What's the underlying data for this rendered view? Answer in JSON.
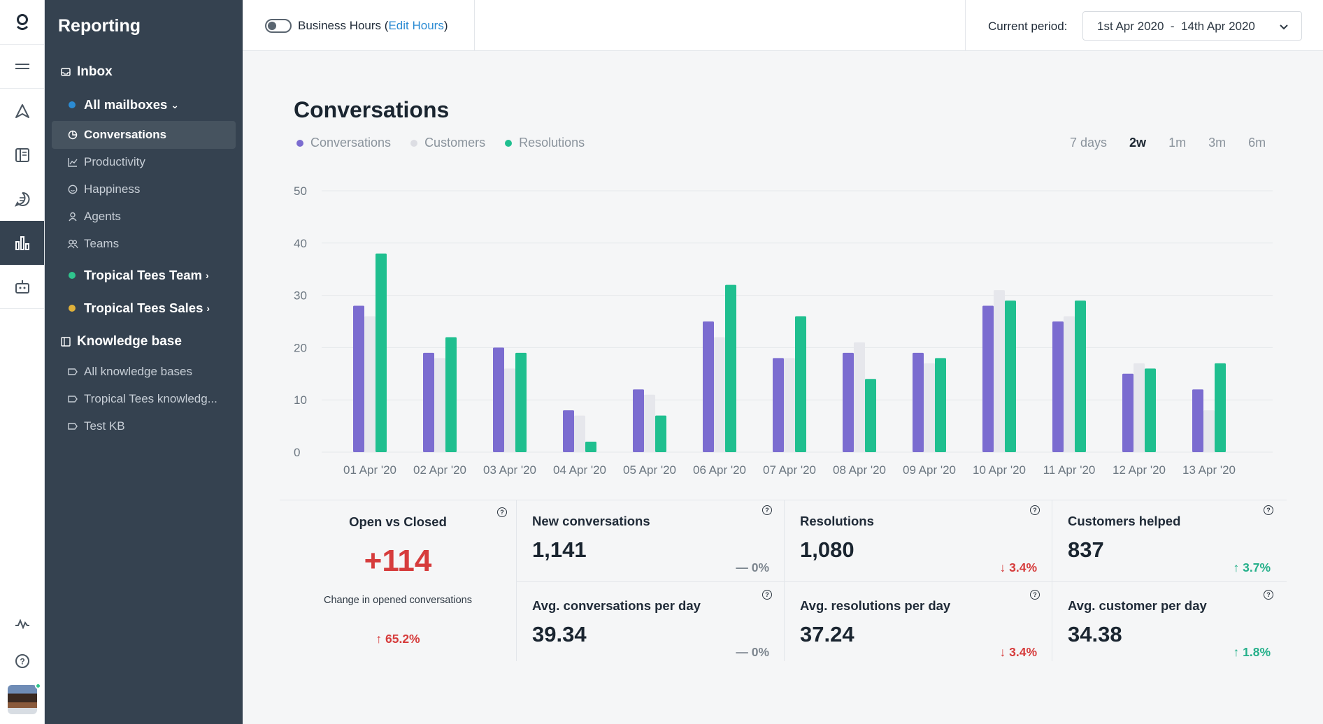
{
  "sidebar": {
    "title": "Reporting",
    "inbox_label": "Inbox",
    "mailboxes_label": "All mailboxes",
    "inbox_items": [
      "Conversations",
      "Productivity",
      "Happiness",
      "Agents",
      "Teams"
    ],
    "team1": "Tropical Tees Team",
    "team2": "Tropical Tees Sales",
    "kb_label": "Knowledge base",
    "kb_items": [
      "All knowledge bases",
      "Tropical Tees knowledg...",
      "Test KB"
    ]
  },
  "topbar": {
    "business_hours": "Business Hours",
    "edit_hours": "Edit Hours",
    "period_label": "Current period:",
    "period_value": "1st Apr 2020  -  14th Apr 2020"
  },
  "main": {
    "title": "Conversations",
    "legend": [
      "Conversations",
      "Customers",
      "Resolutions"
    ],
    "ranges": [
      "7 days",
      "2w",
      "1m",
      "3m",
      "6m"
    ],
    "active_range": "2w"
  },
  "colors": {
    "conversations": "#7b6cd0",
    "customers": "#e6e7ec",
    "resolutions": "#1fbf8f",
    "negative": "#d63c3c",
    "positive": "#25b08a"
  },
  "chart_data": {
    "type": "bar",
    "categories": [
      "01 Apr '20",
      "02 Apr '20",
      "03 Apr '20",
      "04 Apr '20",
      "05 Apr '20",
      "06 Apr '20",
      "07 Apr '20",
      "08 Apr '20",
      "09 Apr '20",
      "10 Apr '20",
      "11 Apr '20",
      "12 Apr '20",
      "13 Apr '20"
    ],
    "series": [
      {
        "name": "Conversations",
        "values": [
          28,
          19,
          20,
          8,
          12,
          25,
          18,
          19,
          19,
          28,
          25,
          15,
          12
        ]
      },
      {
        "name": "Customers",
        "values": [
          26,
          18,
          16,
          7,
          11,
          22,
          18,
          21,
          17,
          31,
          26,
          17,
          8
        ]
      },
      {
        "name": "Resolutions",
        "values": [
          38,
          22,
          19,
          2,
          7,
          32,
          26,
          14,
          18,
          29,
          29,
          16,
          17
        ]
      }
    ],
    "yticks": [
      0,
      10,
      20,
      30,
      40,
      50
    ],
    "ylim": [
      0,
      50
    ],
    "legend_position": "top-left"
  },
  "stats": {
    "open_vs_closed": {
      "label": "Open vs Closed",
      "value": "+114",
      "caption": "Change in opened conversations",
      "change": "↑ 65.2%"
    },
    "new_conversations": {
      "label": "New conversations",
      "value": "1,141",
      "change": "— 0%"
    },
    "resolutions": {
      "label": "Resolutions",
      "value": "1,080",
      "change": "↓ 3.4%"
    },
    "customers_helped": {
      "label": "Customers helped",
      "value": "837",
      "change": "↑ 3.7%"
    },
    "avg_conversations": {
      "label": "Avg. conversations per day",
      "value": "39.34",
      "change": "— 0%"
    },
    "avg_resolutions": {
      "label": "Avg. resolutions per day",
      "value": "37.24",
      "change": "↓ 3.4%"
    },
    "avg_customer": {
      "label": "Avg. customer per day",
      "value": "34.38",
      "change": "↑ 1.8%"
    }
  }
}
